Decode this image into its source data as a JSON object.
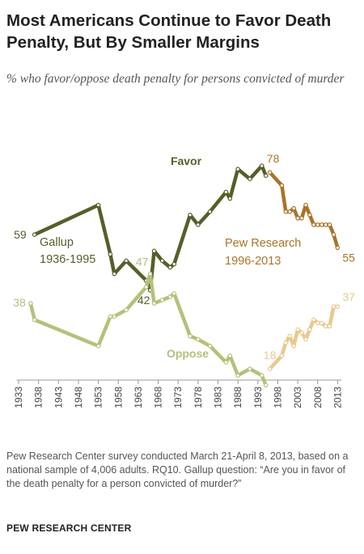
{
  "header": {
    "title": "Most Americans Continue to Favor Death Penalty, But By Smaller Margins",
    "subtitle": "% who favor/oppose death penalty for persons convicted of murder"
  },
  "footer": {
    "note": "Pew Research Center survey conducted March 21-April 8, 2013, based on a national sample of 4,006 adults. RQ10. Gallup question: “Are you in favor of the death penalty for a person convicted of murder?”",
    "source": "PEW RESEARCH CENTER"
  },
  "colors": {
    "favor_gallup": "#565f2a",
    "favor_pew": "#a8742a",
    "oppose_gallup": "#b6c07a",
    "oppose_pew": "#e8c98e",
    "axis": "#999999"
  },
  "chart_data": {
    "type": "line",
    "xlim": [
      1933,
      2014
    ],
    "ylim": [
      0,
      100
    ],
    "x_ticks": [
      "1933",
      "1938",
      "1943",
      "1948",
      "1953",
      "1958",
      "1963",
      "1968",
      "1973",
      "1978",
      "1983",
      "1988",
      "1993",
      "1998",
      "2003",
      "2008",
      "2013"
    ],
    "series": [
      {
        "name": "Favor",
        "label": "Favor",
        "source": "Gallup",
        "points": [
          [
            1937,
            59
          ],
          [
            1953,
            68
          ],
          [
            1956,
            53
          ],
          [
            1957,
            47
          ],
          [
            1960,
            51
          ],
          [
            1965,
            45
          ],
          [
            1966,
            42
          ],
          [
            1967,
            54
          ],
          [
            1969,
            51
          ],
          [
            1971,
            49
          ],
          [
            1972,
            50
          ],
          [
            1976,
            65
          ],
          [
            1978,
            62
          ],
          [
            1981,
            66
          ],
          [
            1985,
            72
          ],
          [
            1986,
            70
          ],
          [
            1988,
            79
          ],
          [
            1991,
            76
          ],
          [
            1994,
            80
          ],
          [
            1995,
            77
          ]
        ]
      },
      {
        "name": "Favor",
        "source": "Pew Research",
        "points": [
          [
            1996,
            78
          ],
          [
            1999,
            74
          ],
          [
            2000,
            66
          ],
          [
            2001,
            66
          ],
          [
            2002,
            67
          ],
          [
            2003,
            64
          ],
          [
            2004,
            64
          ],
          [
            2005,
            68
          ],
          [
            2006,
            65
          ],
          [
            2007,
            62
          ],
          [
            2008,
            62
          ],
          [
            2009,
            62
          ],
          [
            2010,
            62
          ],
          [
            2011,
            62
          ],
          [
            2012,
            59
          ],
          [
            2013,
            55
          ]
        ]
      },
      {
        "name": "Oppose",
        "label": "Oppose",
        "source": "Gallup",
        "points": [
          [
            1936,
            38
          ],
          [
            1937,
            33
          ],
          [
            1953,
            25
          ],
          [
            1956,
            34
          ],
          [
            1957,
            34
          ],
          [
            1960,
            36
          ],
          [
            1965,
            43
          ],
          [
            1966,
            47
          ],
          [
            1967,
            38
          ],
          [
            1969,
            39
          ],
          [
            1971,
            40
          ],
          [
            1972,
            41
          ],
          [
            1976,
            28
          ],
          [
            1978,
            27
          ],
          [
            1981,
            25
          ],
          [
            1985,
            20
          ],
          [
            1986,
            22
          ],
          [
            1988,
            16
          ],
          [
            1991,
            18
          ],
          [
            1994,
            16
          ],
          [
            1995,
            13
          ]
        ]
      },
      {
        "name": "Oppose",
        "source": "Pew Research",
        "points": [
          [
            1996,
            18
          ],
          [
            1999,
            22
          ],
          [
            2000,
            26
          ],
          [
            2001,
            28
          ],
          [
            2002,
            25
          ],
          [
            2003,
            30
          ],
          [
            2004,
            29
          ],
          [
            2005,
            27
          ],
          [
            2006,
            30
          ],
          [
            2007,
            33
          ],
          [
            2008,
            32
          ],
          [
            2009,
            32
          ],
          [
            2010,
            31
          ],
          [
            2011,
            31
          ],
          [
            2012,
            37
          ],
          [
            2013,
            37
          ]
        ]
      }
    ],
    "series_labels": [
      {
        "text": "Favor",
        "series": 0
      },
      {
        "text": "Oppose",
        "series": 2
      }
    ],
    "annotations": [
      {
        "text": "Gallup",
        "role": "source"
      },
      {
        "text": "1936-1995",
        "role": "source"
      },
      {
        "text": "Pew Research",
        "role": "source"
      },
      {
        "text": "1996-2013",
        "role": "source"
      }
    ],
    "data_labels": [
      {
        "text": "59",
        "series": 0,
        "x": 1937,
        "y": 59
      },
      {
        "text": "42",
        "series": 0,
        "x": 1966,
        "y": 42
      },
      {
        "text": "78",
        "series": 1,
        "x": 1996,
        "y": 78
      },
      {
        "text": "55",
        "series": 1,
        "x": 2013,
        "y": 55
      },
      {
        "text": "38",
        "series": 2,
        "x": 1936,
        "y": 38
      },
      {
        "text": "47",
        "series": 2,
        "x": 1966,
        "y": 47
      },
      {
        "text": "18",
        "series": 3,
        "x": 1996,
        "y": 18
      },
      {
        "text": "37",
        "series": 3,
        "x": 2013,
        "y": 37
      }
    ]
  }
}
